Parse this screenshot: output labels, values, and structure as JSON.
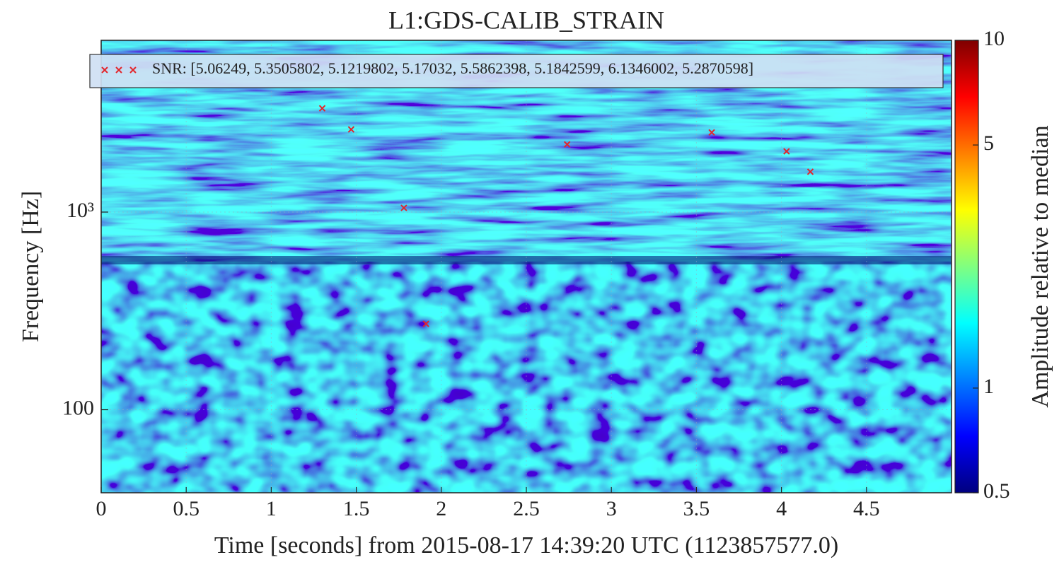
{
  "chart_data": {
    "type": "spectrogram",
    "title": "L1:GDS-CALIB_STRAIN",
    "x_label": "Time [seconds] from 2015-08-17 14:39:20 UTC (1123857577.0)",
    "y_label": "Frequency [Hz]",
    "xlim": [
      0,
      5
    ],
    "xticks": [
      0,
      0.5,
      1,
      1.5,
      2,
      2.5,
      3,
      3.5,
      4,
      4.5
    ],
    "ylim": [
      38,
      7400
    ],
    "yscale": "log",
    "yticks": [
      100,
      {
        "value": 1000,
        "label": "10³"
      }
    ],
    "grid": true,
    "legend": "upper left",
    "series": [
      {
        "name": "SNR: [5.06249, 5.3505802, 5.1219802, 5.17032, 5.5862398, 5.1842599, 6.1346002, 5.2870598]",
        "color": "#e3262b",
        "marker": "x",
        "x": [
          1.3,
          1.47,
          1.78,
          1.91,
          2.74,
          3.59,
          4.03,
          4.17
        ],
        "values": [
          3350,
          2620,
          1050,
          272,
          2200,
          2530,
          2030,
          1600
        ]
      }
    ],
    "colorbar": {
      "label": "Amplitude relative to median",
      "scale": "log",
      "lim": [
        0.5,
        10
      ],
      "ticks": [
        0.5,
        1,
        5,
        10
      ],
      "colormap": [
        "#00007f",
        "#0000ff",
        "#0080ff",
        "#00ffff",
        "#80ff80",
        "#ffff00",
        "#ff8000",
        "#ff0000",
        "#7f0000"
      ]
    }
  }
}
